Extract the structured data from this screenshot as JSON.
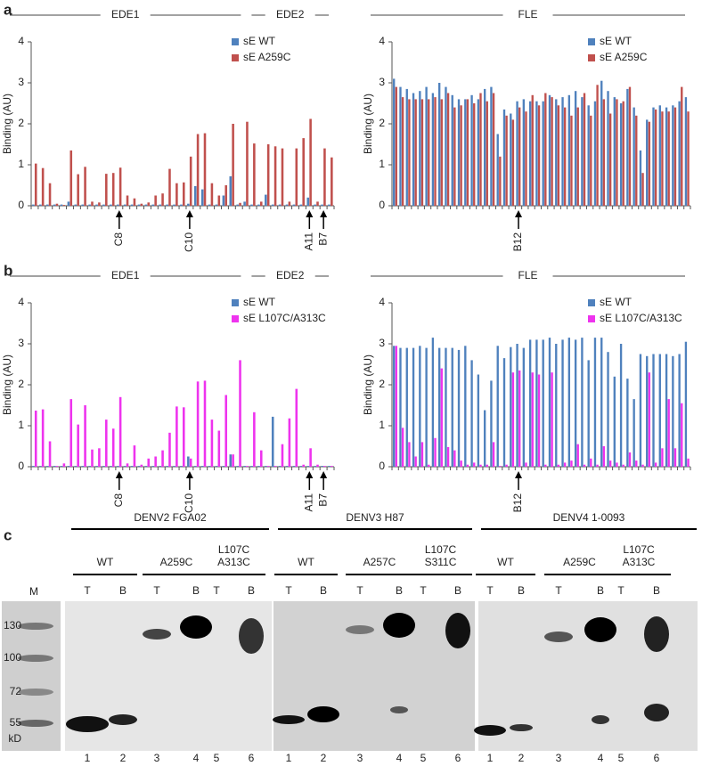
{
  "panel_labels": [
    "a",
    "b",
    "c"
  ],
  "chart_data": [
    {
      "type": "bar",
      "ylabel": "Binding (AU)",
      "ylim": [
        0,
        4
      ],
      "yticks": [
        0,
        1,
        2,
        3,
        4
      ],
      "groups": [
        "EDE1",
        "EDE2"
      ],
      "categories": [
        null,
        null,
        null,
        null,
        null,
        null,
        null,
        null,
        null,
        null,
        null,
        null,
        "C8",
        null,
        null,
        null,
        null,
        null,
        null,
        null,
        null,
        null,
        "C10",
        null,
        null,
        null,
        null,
        null,
        null,
        null,
        null,
        null,
        null,
        null,
        null,
        null,
        null,
        null,
        null,
        "A11",
        null,
        "B7",
        null
      ],
      "series": [
        {
          "name": "sE WT",
          "color": "#4f81bd",
          "values": [
            0.03,
            0.03,
            0.03,
            0.03,
            0.03,
            0.1,
            0.03,
            0.03,
            0.03,
            0.03,
            0.03,
            0.03,
            0.03,
            0.03,
            0.03,
            0.03,
            0.03,
            0.03,
            0.03,
            0.03,
            0.03,
            0.03,
            0.05,
            0.48,
            0.4,
            0.03,
            0.03,
            0.25,
            0.72,
            0.03,
            0.1,
            0.03,
            0.03,
            0.27,
            0.03,
            0.03,
            0.03,
            0.03,
            0.03,
            0.2,
            0.03,
            0.03,
            0.03
          ]
        },
        {
          "name": "sE A259C",
          "color": "#c0504d",
          "values": [
            1.03,
            0.92,
            0.55,
            0.05,
            0.02,
            1.35,
            0.77,
            0.95,
            0.1,
            0.08,
            0.78,
            0.8,
            0.93,
            0.25,
            0.18,
            0.05,
            0.08,
            0.25,
            0.3,
            0.9,
            0.55,
            0.57,
            1.2,
            1.75,
            1.77,
            0.55,
            0.25,
            0.5,
            2.0,
            0.07,
            2.05,
            1.52,
            0.1,
            1.5,
            1.45,
            1.4,
            0.1,
            1.4,
            1.65,
            2.12,
            0.1,
            1.4,
            1.18
          ]
        }
      ]
    },
    {
      "type": "bar",
      "ylabel": "Binding (AU)",
      "ylim": [
        0,
        4
      ],
      "yticks": [
        0,
        1,
        2,
        3,
        4
      ],
      "groups": [
        "FLE"
      ],
      "categories": [
        null,
        null,
        null,
        null,
        null,
        null,
        null,
        null,
        null,
        null,
        null,
        null,
        null,
        null,
        null,
        null,
        null,
        null,
        null,
        "B12",
        null,
        null,
        null,
        null,
        null,
        null,
        null,
        null,
        null,
        null,
        null,
        null,
        null,
        null,
        null,
        null,
        null,
        null,
        null,
        null,
        null,
        null,
        null,
        null,
        null,
        null
      ],
      "series": [
        {
          "name": "sE WT",
          "color": "#4f81bd",
          "values": [
            3.1,
            2.9,
            2.85,
            2.75,
            2.8,
            2.9,
            2.75,
            3.0,
            2.9,
            2.7,
            2.6,
            2.6,
            2.7,
            2.6,
            2.85,
            2.9,
            1.75,
            2.35,
            2.25,
            2.55,
            2.6,
            2.55,
            2.55,
            2.55,
            2.7,
            2.6,
            2.65,
            2.7,
            2.8,
            2.65,
            2.45,
            2.55,
            3.05,
            2.8,
            2.65,
            2.5,
            2.85,
            2.4,
            1.35,
            2.1,
            2.4,
            2.45,
            2.4,
            2.45,
            2.55,
            2.65
          ]
        },
        {
          "name": "sE A259C",
          "color": "#c0504d",
          "values": [
            2.9,
            2.65,
            2.6,
            2.6,
            2.6,
            2.6,
            2.65,
            2.6,
            2.75,
            2.4,
            2.45,
            2.6,
            2.5,
            2.75,
            2.55,
            2.75,
            1.2,
            2.2,
            2.1,
            2.4,
            2.3,
            2.7,
            2.45,
            2.75,
            2.65,
            2.45,
            2.4,
            2.2,
            2.4,
            2.75,
            2.2,
            2.95,
            2.6,
            2.25,
            2.6,
            2.55,
            2.9,
            2.2,
            0.8,
            2.05,
            2.35,
            2.3,
            2.3,
            2.4,
            2.9,
            2.3
          ]
        }
      ]
    },
    {
      "type": "bar",
      "ylabel": "Binding (AU)",
      "ylim": [
        0,
        4
      ],
      "yticks": [
        0,
        1,
        2,
        3,
        4
      ],
      "groups": [
        "EDE1",
        "EDE2"
      ],
      "categories": [
        null,
        null,
        null,
        null,
        null,
        null,
        null,
        null,
        null,
        null,
        null,
        null,
        "C8",
        null,
        null,
        null,
        null,
        null,
        null,
        null,
        null,
        null,
        "C10",
        null,
        null,
        null,
        null,
        null,
        null,
        null,
        null,
        null,
        null,
        null,
        null,
        null,
        null,
        null,
        null,
        "A11",
        null,
        "B7",
        null
      ],
      "series": [
        {
          "name": "sE WT",
          "color": "#4f81bd",
          "values": [
            0.02,
            0.02,
            0.02,
            0.02,
            0.02,
            0.02,
            0.02,
            0.02,
            0.02,
            0.02,
            0.02,
            0.02,
            0.02,
            0.02,
            0.02,
            0.02,
            0.02,
            0.02,
            0.02,
            0.02,
            0.02,
            0.02,
            0.25,
            0.02,
            0.02,
            0.02,
            0.02,
            0.02,
            0.3,
            0.02,
            0.02,
            0.02,
            0.02,
            0.02,
            1.22,
            0.02,
            0.02,
            0.02,
            0.02,
            0.02,
            0.02,
            0.02,
            0.02
          ]
        },
        {
          "name": "sE L107C/A313C",
          "color": "#ee33ee",
          "values": [
            1.37,
            1.4,
            0.62,
            0.02,
            0.08,
            1.65,
            1.03,
            1.5,
            0.42,
            0.45,
            1.15,
            0.93,
            1.7,
            0.08,
            0.52,
            0.05,
            0.2,
            0.25,
            0.4,
            0.83,
            1.47,
            1.45,
            0.2,
            2.08,
            2.1,
            1.15,
            0.88,
            1.75,
            0.3,
            2.6,
            0.02,
            1.33,
            0.4,
            0.02,
            0.02,
            0.55,
            1.18,
            1.9,
            0.05,
            0.45,
            0.05,
            0.02,
            0.02
          ]
        }
      ]
    },
    {
      "type": "bar",
      "ylabel": "Binding (AU)",
      "ylim": [
        0,
        4
      ],
      "yticks": [
        0,
        1,
        2,
        3,
        4
      ],
      "groups": [
        "FLE"
      ],
      "categories": [
        null,
        null,
        null,
        null,
        null,
        null,
        null,
        null,
        null,
        null,
        null,
        null,
        null,
        null,
        null,
        null,
        null,
        null,
        null,
        "B12",
        null,
        null,
        null,
        null,
        null,
        null,
        null,
        null,
        null,
        null,
        null,
        null,
        null,
        null,
        null,
        null,
        null,
        null,
        null,
        null,
        null,
        null,
        null,
        null,
        null,
        null
      ],
      "series": [
        {
          "name": "sE WT",
          "color": "#4f81bd",
          "values": [
            2.95,
            2.9,
            2.9,
            2.9,
            2.95,
            2.9,
            3.15,
            2.9,
            2.9,
            2.9,
            2.85,
            2.95,
            2.6,
            2.25,
            1.38,
            2.1,
            2.95,
            2.65,
            2.92,
            3.0,
            2.9,
            3.1,
            3.1,
            3.1,
            3.15,
            3.0,
            3.1,
            3.15,
            3.1,
            3.15,
            2.6,
            3.15,
            3.15,
            2.8,
            2.2,
            3.0,
            2.15,
            1.65,
            2.75,
            2.7,
            2.75,
            2.75,
            2.75,
            2.7,
            2.75,
            3.05
          ]
        },
        {
          "name": "sE L107C/A313C",
          "color": "#ee33ee",
          "values": [
            2.95,
            0.95,
            0.6,
            0.25,
            0.6,
            0.05,
            0.7,
            2.4,
            0.48,
            0.4,
            0.15,
            0.05,
            0.1,
            0.05,
            0.05,
            0.6,
            0.02,
            0.05,
            2.3,
            2.35,
            0.1,
            2.3,
            2.25,
            0.05,
            2.3,
            0.05,
            0.1,
            0.15,
            0.55,
            0.05,
            0.2,
            0.05,
            0.5,
            0.15,
            0.1,
            0.05,
            0.35,
            0.15,
            0.05,
            2.3,
            0.1,
            0.45,
            1.65,
            0.45,
            1.55,
            0.2
          ]
        }
      ]
    }
  ],
  "blot": {
    "marker_lane": "M",
    "marker_sizes": [
      "130",
      "100",
      "72",
      "55"
    ],
    "unit": "kD",
    "lane_types": [
      "T",
      "B",
      "T",
      "B",
      "T",
      "B"
    ],
    "lane_numbers": [
      "1",
      "2",
      "3",
      "4",
      "5",
      "6"
    ],
    "viruses": [
      {
        "name": "DENV2 FGA02",
        "constructs": [
          [
            "WT"
          ],
          [
            "A259C"
          ],
          [
            "L107C",
            "A313C"
          ]
        ]
      },
      {
        "name": "DENV3 H87",
        "constructs": [
          [
            "WT"
          ],
          [
            "A257C"
          ],
          [
            "L107C",
            "S311C"
          ]
        ]
      },
      {
        "name": "DENV4 1-0093",
        "constructs": [
          [
            "WT"
          ],
          [
            "A259C"
          ],
          [
            "L107C",
            "A313C"
          ]
        ]
      }
    ]
  }
}
